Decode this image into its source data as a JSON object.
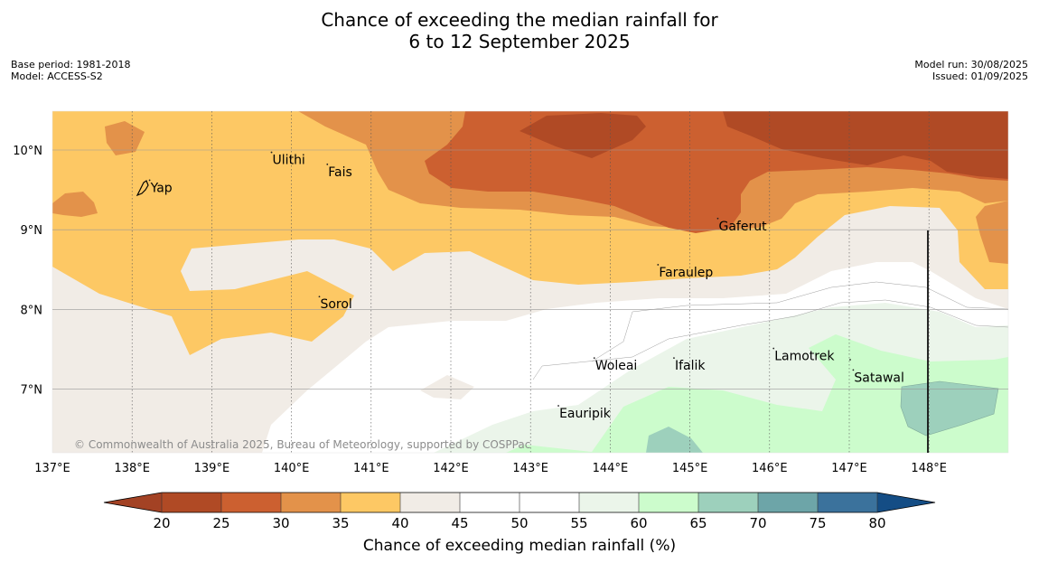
{
  "title": {
    "line1": "Chance of exceeding the median rainfall for",
    "line2": "6 to 12 September 2025"
  },
  "meta_left": {
    "base_period": "Base period: 1981-2018",
    "model": "Model: ACCESS-S2"
  },
  "meta_right": {
    "model_run": "Model run: 30/08/2025",
    "issued": "Issued: 01/09/2025"
  },
  "map": {
    "lon_ticks": [
      "137°E",
      "138°E",
      "139°E",
      "140°E",
      "141°E",
      "142°E",
      "143°E",
      "144°E",
      "145°E",
      "146°E",
      "147°E",
      "148°E"
    ],
    "lat_ticks": [
      "10°N",
      "9°N",
      "8°N",
      "7°N"
    ],
    "places": [
      {
        "name": "Yap",
        "lon": 138.22,
        "lat": 9.53
      },
      {
        "name": "Ulithi",
        "lon": 139.75,
        "lat": 9.88
      },
      {
        "name": "Fais",
        "lon": 140.45,
        "lat": 9.73
      },
      {
        "name": "Gaferut",
        "lon": 145.35,
        "lat": 9.05
      },
      {
        "name": "Faraulep",
        "lon": 144.6,
        "lat": 8.47
      },
      {
        "name": "Sorol",
        "lon": 140.35,
        "lat": 8.07
      },
      {
        "name": "Woleai",
        "lon": 143.8,
        "lat": 7.3
      },
      {
        "name": "Ifalik",
        "lon": 144.8,
        "lat": 7.3
      },
      {
        "name": "Lamotrek",
        "lon": 146.05,
        "lat": 7.42
      },
      {
        "name": "Satawal",
        "lon": 147.05,
        "lat": 7.15
      },
      {
        "name": "Eauripik",
        "lon": 143.35,
        "lat": 6.7
      }
    ],
    "copyright": "© Commonwealth of Australia 2025, Bureau of Meteorology, supported by COSPPac"
  },
  "colorbar": {
    "ticks": [
      "20",
      "25",
      "30",
      "35",
      "40",
      "45",
      "50",
      "55",
      "60",
      "65",
      "70",
      "75",
      "80"
    ],
    "colors": [
      "#a34224",
      "#b04a25",
      "#cc6030",
      "#e3924a",
      "#fdc864",
      "#f1ece6",
      "#ffffff",
      "#ffffff",
      "#ebf5ea",
      "#ccfccc",
      "#9dd0bc",
      "#6da5a8",
      "#3b729c",
      "#144d85"
    ],
    "title": "Chance of exceeding median rainfall (%)"
  }
}
